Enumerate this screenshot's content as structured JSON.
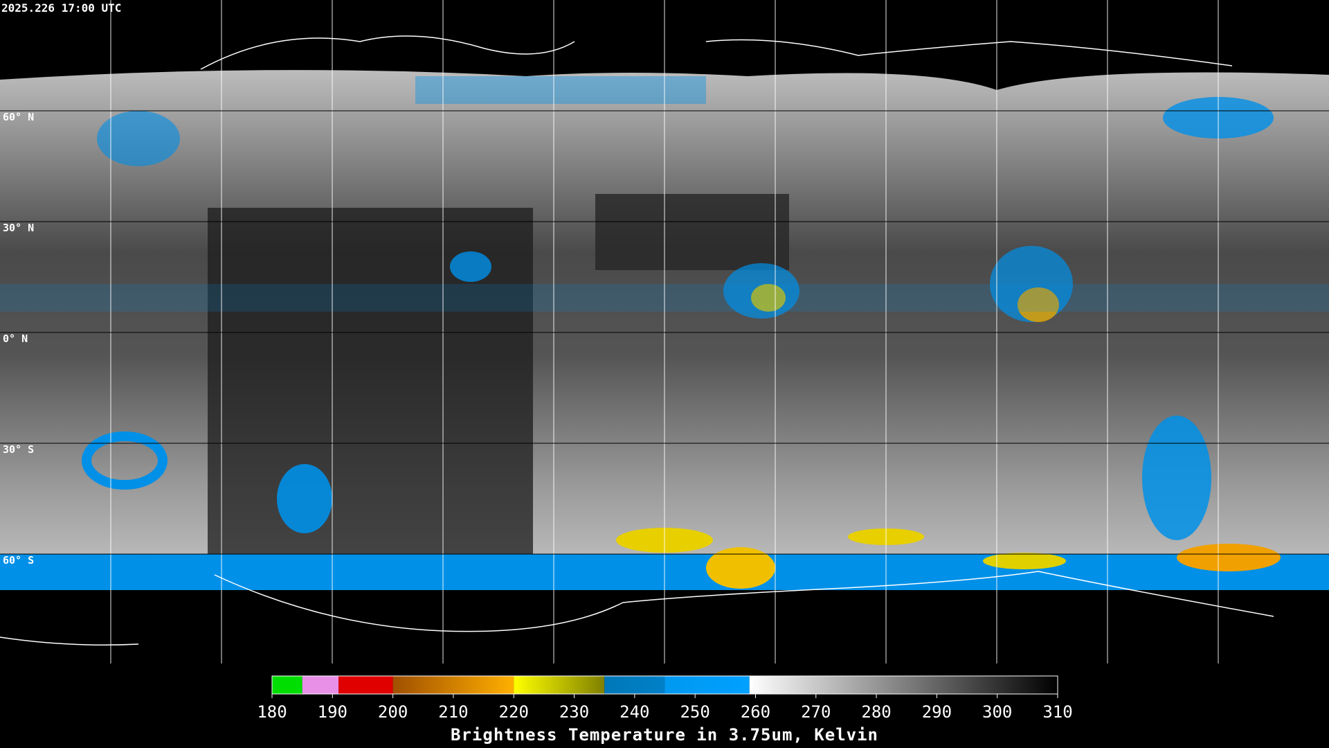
{
  "header": {
    "timestamp": "2025.226 17:00 UTC"
  },
  "lat_labels": [
    "60° N",
    "30° N",
    "0° N",
    "30° S",
    "60° S"
  ],
  "colorbar": {
    "range": [
      180,
      310
    ],
    "ticks": [
      180,
      190,
      200,
      210,
      220,
      230,
      240,
      250,
      260,
      270,
      280,
      290,
      300,
      310
    ],
    "stops": [
      {
        "from": 180,
        "to": 185,
        "color": "#00dd00",
        "color_end": "#00dd00"
      },
      {
        "from": 185,
        "to": 191,
        "color": "#e890e8",
        "color_end": "#e890e8"
      },
      {
        "from": 191,
        "to": 200,
        "color": "#e00000",
        "color_end": "#e00000"
      },
      {
        "from": 200,
        "to": 220,
        "color": "#a05000",
        "color_end": "#ffb000"
      },
      {
        "from": 220,
        "to": 235,
        "color": "#ffff00",
        "color_end": "#808000"
      },
      {
        "from": 235,
        "to": 245,
        "color": "#0078b8",
        "color_end": "#0080c8"
      },
      {
        "from": 245,
        "to": 259,
        "color": "#0099f0",
        "color_end": "#00a0ff"
      },
      {
        "from": 259,
        "to": 310,
        "color": "#ffffff",
        "color_end": "#000000"
      }
    ],
    "label": "Brightness Temperature in 3.75um, Kelvin"
  }
}
